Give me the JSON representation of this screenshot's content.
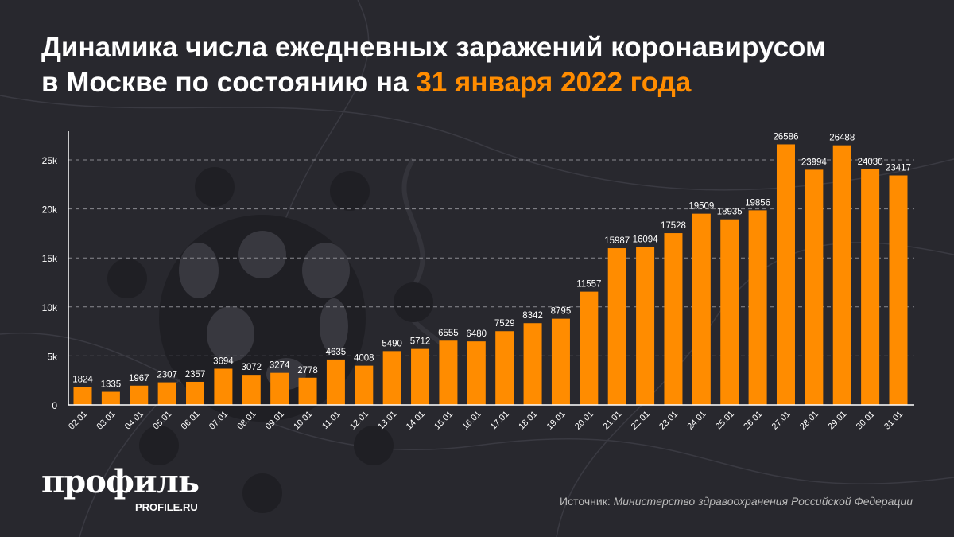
{
  "title": {
    "line1": "Динамика числа ежедневных заражений коронавирусом",
    "line2_prefix": "в Москве по состоянию на",
    "line2_highlight": "31 января 2022 года"
  },
  "colors": {
    "bar": "#ff8c00",
    "highlight": "#ff8c00",
    "background": "#28282e"
  },
  "chart_data": {
    "type": "bar",
    "categories": [
      "02.01",
      "03.01",
      "04.01",
      "05.01",
      "06.01",
      "07.01",
      "08.01",
      "09.01",
      "10.01",
      "11.01",
      "12.01",
      "13.01",
      "14.01",
      "15.01",
      "16.01",
      "17.01",
      "18.01",
      "19.01",
      "20.01",
      "21.01",
      "22.01",
      "23.01",
      "24.01",
      "25.01",
      "26.01",
      "27.01",
      "28.01",
      "29.01",
      "30.01",
      "31.01"
    ],
    "values": [
      1824,
      1335,
      1967,
      2307,
      2357,
      3694,
      3072,
      3274,
      2778,
      4635,
      4008,
      5490,
      5712,
      6555,
      6480,
      7529,
      8342,
      8795,
      11557,
      15987,
      16094,
      17528,
      19509,
      18935,
      19856,
      26586,
      23994,
      26488,
      24030,
      23417
    ],
    "yticks": [
      0,
      5000,
      10000,
      15000,
      20000,
      25000
    ],
    "ytick_labels": [
      "0",
      "5k",
      "10k",
      "15k",
      "20k",
      "25k"
    ],
    "ylim": [
      0,
      27000
    ],
    "grid": "horizontal dashed",
    "data_labels": true
  },
  "logo": {
    "name": "профиль",
    "site": "PROFILE.RU"
  },
  "source": {
    "label": "Источник:",
    "text": "Министерство здравоохранения Российской Федерации"
  }
}
